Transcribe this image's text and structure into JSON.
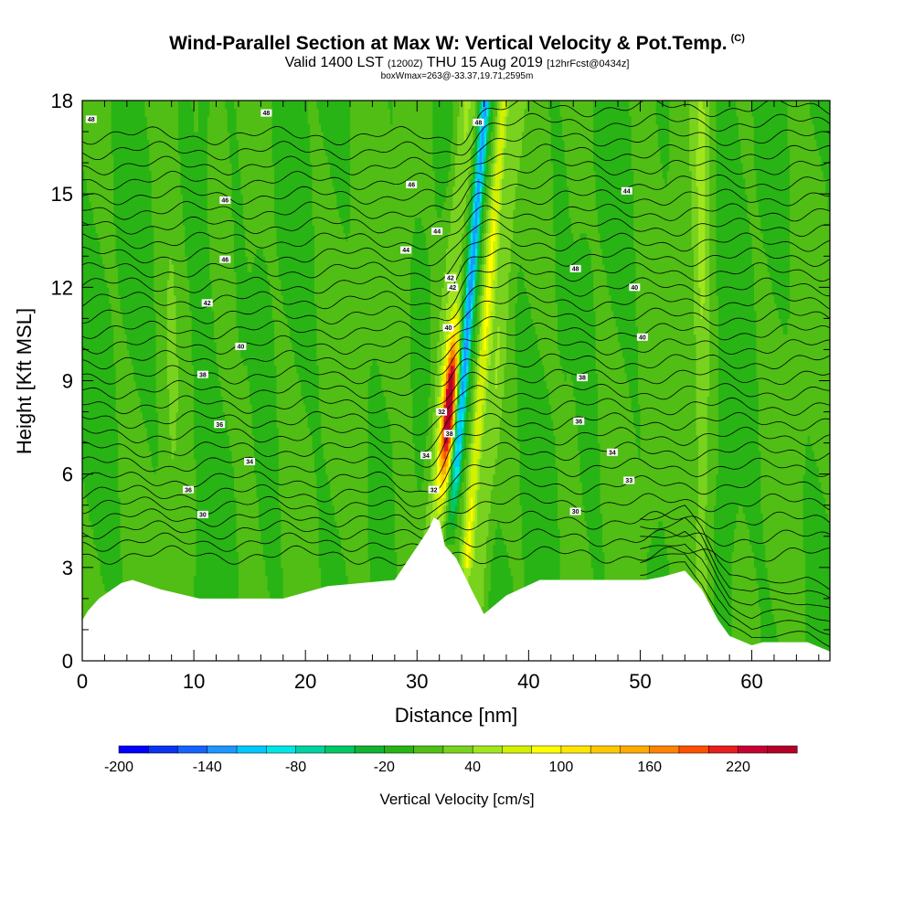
{
  "title": {
    "main": "Wind-Parallel Section at Max W: Vertical Velocity & Pot.Temp.",
    "copyright": "(C)",
    "valid_prefix": "Valid 1400 LST",
    "valid_z": "(1200Z)",
    "valid_date": "THU 15 Aug 2019",
    "valid_fcst": "[12hrFcst@0434z]",
    "box_info": "boxWmax=263@-33.37,19.71,2595m"
  },
  "chart_data": {
    "type": "heatmap",
    "title": "Wind-Parallel Section at Max W: Vertical Velocity & Pot.Temp.",
    "xlabel": "Distance [nm]",
    "ylabel": "Height [Kft MSL]",
    "xlim": [
      0,
      67
    ],
    "ylim": [
      0,
      18
    ],
    "x_ticks": [
      0,
      10,
      20,
      30,
      40,
      50,
      60
    ],
    "y_ticks": [
      0,
      3,
      6,
      9,
      12,
      15,
      18
    ],
    "colorbar": {
      "label": "Vertical Velocity [cm/s]",
      "min": -200,
      "max": 260,
      "step": 20,
      "tick_values": [
        -200,
        -140,
        -80,
        -20,
        40,
        100,
        160,
        220
      ],
      "tick_labels": [
        "-200",
        "-140",
        "-80",
        "-20",
        "40",
        "100",
        "160",
        "220"
      ],
      "colors": [
        "#0000ff",
        "#0a32f0",
        "#1464ff",
        "#1e96ff",
        "#00c8ff",
        "#00e6e6",
        "#00d2a0",
        "#00c864",
        "#10b432",
        "#28b414",
        "#50be14",
        "#78d21e",
        "#a0e61e",
        "#d2f000",
        "#ffff00",
        "#ffe600",
        "#ffc800",
        "#ffaa00",
        "#ff8200",
        "#ff5000",
        "#e61e1e",
        "#c80032",
        "#b40028"
      ]
    },
    "terrain_profile": {
      "x": [
        0,
        0.5,
        1.5,
        3.5,
        4.5,
        7,
        10.5,
        11,
        18,
        22,
        28,
        31,
        31.5,
        32,
        32.5,
        33.5,
        35,
        36,
        38,
        41,
        44.5,
        47.5,
        50.5,
        52,
        54,
        55.5,
        57,
        58,
        60,
        61,
        63,
        65,
        67
      ],
      "height_kft": [
        1.3,
        1.6,
        2.0,
        2.5,
        2.6,
        2.3,
        2.0,
        2.0,
        2.0,
        2.4,
        2.6,
        4.2,
        4.6,
        4.5,
        3.7,
        3.3,
        2.2,
        1.5,
        2.1,
        2.6,
        2.6,
        2.6,
        2.6,
        2.7,
        2.9,
        2.3,
        1.3,
        0.8,
        0.5,
        0.6,
        0.6,
        0.6,
        0.3
      ]
    },
    "theta_contours_degC": {
      "interval": 1,
      "labeled_values": [
        "48",
        "48",
        "46",
        "46",
        "48",
        "46",
        "44",
        "44",
        "42",
        "40",
        "40",
        "42",
        "40",
        "38",
        "38",
        "36",
        "36",
        "34",
        "34",
        "34",
        "33",
        "32",
        "36",
        "32",
        "30",
        "30",
        "48",
        "44",
        "42",
        "40",
        "38"
      ]
    },
    "vertical_velocity_features": [
      {
        "name": "updraft core",
        "x_nm": 33,
        "height_range_kft": [
          4.5,
          11
        ],
        "max_cm_s": 263
      },
      {
        "name": "downdraft column",
        "x_nm": 34.5,
        "height_range_kft": [
          6,
          18
        ],
        "min_cm_s": -120
      },
      {
        "name": "secondary updraft band",
        "x_nm": 36.5,
        "height_range_kft": [
          3,
          18
        ],
        "max_cm_s": 80
      }
    ]
  }
}
